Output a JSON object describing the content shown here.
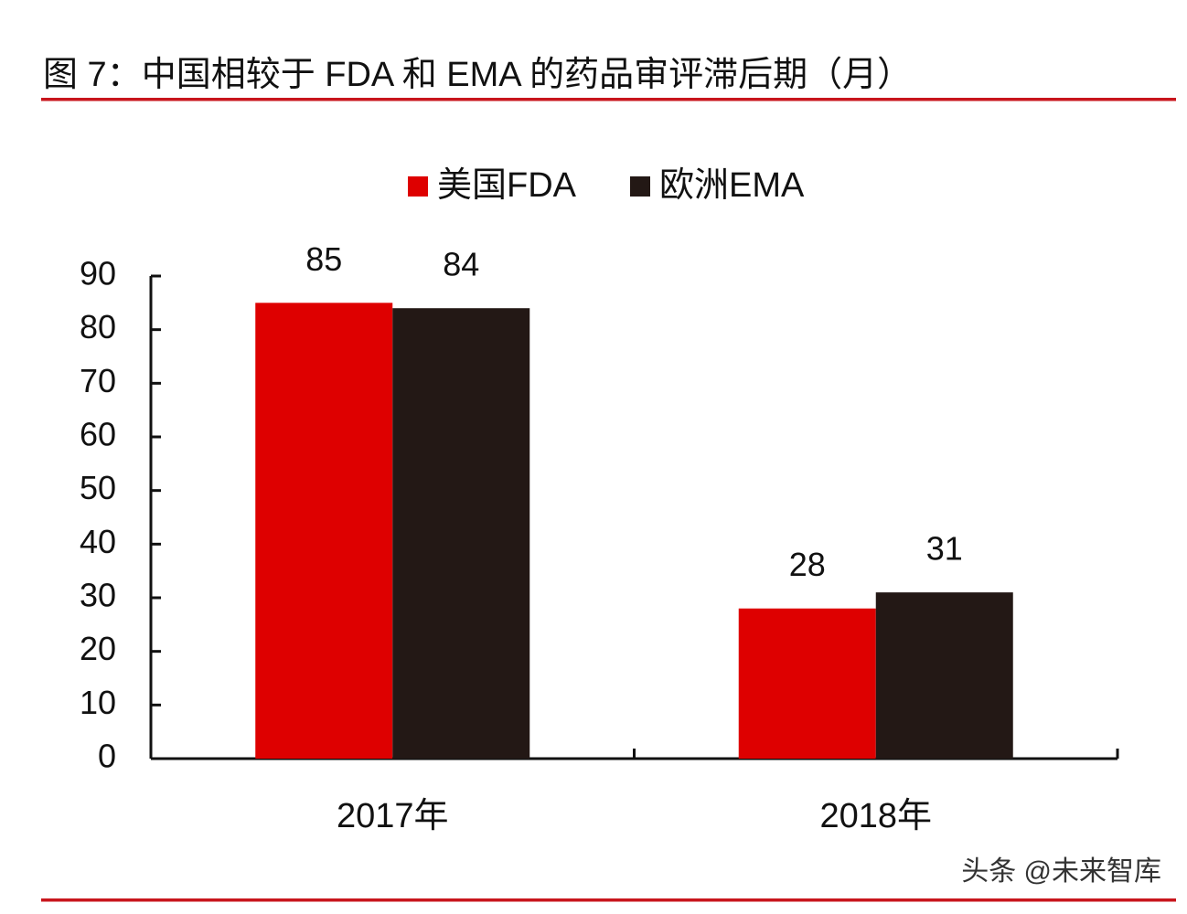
{
  "chart_data": {
    "type": "bar",
    "title": "图 7：中国相较于 FDA 和 EMA 的药品审评滞后期（月）",
    "categories": [
      "2017年",
      "2018年"
    ],
    "series": [
      {
        "name": "美国FDA",
        "color": "#de0000",
        "values": [
          85,
          28
        ]
      },
      {
        "name": "欧洲EMA",
        "color": "#231815",
        "values": [
          84,
          31
        ]
      }
    ],
    "ylim": [
      0,
      90
    ],
    "yticks": [
      0,
      10,
      20,
      30,
      40,
      50,
      60,
      70,
      80,
      90
    ],
    "legend": "top",
    "watermark": "头条 @未来智库"
  }
}
